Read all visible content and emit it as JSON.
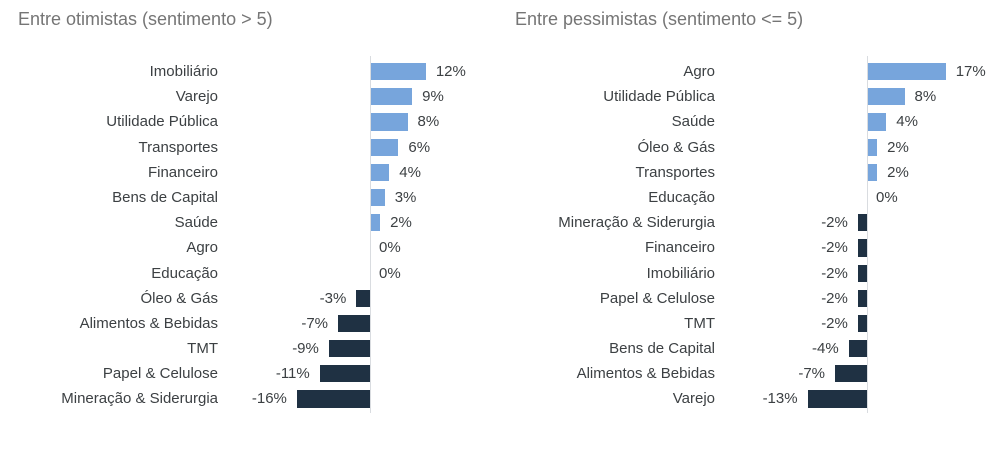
{
  "colors": {
    "positive_bar": "#77a5dc",
    "negative_bar": "#1f3143",
    "axis_line": "#d9dce0",
    "title_text": "#757575",
    "label_text": "#3c4043",
    "background": "#ffffff"
  },
  "chart_data": [
    {
      "type": "bar",
      "orientation": "horizontal",
      "title": "Entre otimistas (sentimento > 5)",
      "unit": "%",
      "legend": "none",
      "gridlines": false,
      "baseline": 0,
      "categories": [
        "Imobiliário",
        "Varejo",
        "Utilidade Pública",
        "Transportes",
        "Financeiro",
        "Bens de Capital",
        "Saúde",
        "Agro",
        "Educação",
        "Óleo & Gás",
        "Alimentos & Bebidas",
        "TMT",
        "Papel & Celulose",
        "Mineração & Siderurgia"
      ],
      "values": [
        12,
        9,
        8,
        6,
        4,
        3,
        2,
        0,
        0,
        -3,
        -7,
        -9,
        -11,
        -16
      ],
      "value_labels": [
        "12%",
        "9%",
        "8%",
        "6%",
        "4%",
        "3%",
        "2%",
        "0%",
        "0%",
        "-3%",
        "-7%",
        "-9%",
        "-11%",
        "-16%"
      ]
    },
    {
      "type": "bar",
      "orientation": "horizontal",
      "title": "Entre pessimistas (sentimento <= 5)",
      "unit": "%",
      "legend": "none",
      "gridlines": false,
      "baseline": 0,
      "categories": [
        "Agro",
        "Utilidade Pública",
        "Saúde",
        "Óleo & Gás",
        "Transportes",
        "Educação",
        "Mineração & Siderurgia",
        "Financeiro",
        "Imobiliário",
        "Papel & Celulose",
        "TMT",
        "Bens de Capital",
        "Alimentos & Bebidas",
        "Varejo"
      ],
      "values": [
        17,
        8,
        4,
        2,
        2,
        0,
        -2,
        -2,
        -2,
        -2,
        -2,
        -4,
        -7,
        -13
      ],
      "value_labels": [
        "17%",
        "8%",
        "4%",
        "2%",
        "2%",
        "0%",
        "-2%",
        "-2%",
        "-2%",
        "-2%",
        "-2%",
        "-4%",
        "-7%",
        "-13%"
      ]
    }
  ]
}
